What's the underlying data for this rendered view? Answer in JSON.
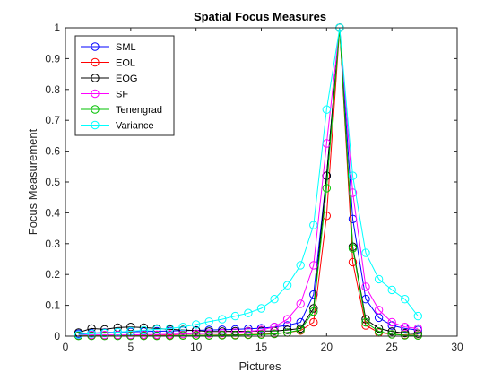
{
  "chart_data": {
    "type": "line",
    "title": "Spatial Focus Measures",
    "xlabel": "Pictures",
    "ylabel": "Focus Measurement",
    "xlim": [
      0,
      30
    ],
    "ylim": [
      0,
      1
    ],
    "xticks": [
      0,
      5,
      10,
      15,
      20,
      25,
      30
    ],
    "yticks": [
      0,
      0.1,
      0.2,
      0.3,
      0.4,
      0.5,
      0.6,
      0.7,
      0.8,
      0.9,
      1
    ],
    "xtick_labels": [
      "0",
      "5",
      "10",
      "15",
      "20",
      "25",
      "30"
    ],
    "ytick_labels": [
      "0",
      "0.1",
      "0.2",
      "0.3",
      "0.4",
      "0.5",
      "0.6",
      "0.7",
      "0.8",
      "0.9",
      "1"
    ],
    "grid": false,
    "legend_position": "top-left",
    "marker": "circle",
    "x": [
      1,
      2,
      3,
      4,
      5,
      6,
      7,
      8,
      9,
      10,
      11,
      12,
      13,
      14,
      15,
      16,
      17,
      18,
      19,
      20,
      21,
      22,
      23,
      24,
      25,
      26,
      27
    ],
    "series": [
      {
        "name": "SML",
        "color": "#0000ff",
        "values": [
          0.008,
          0.01,
          0.012,
          0.013,
          0.014,
          0.015,
          0.016,
          0.017,
          0.018,
          0.019,
          0.02,
          0.021,
          0.022,
          0.024,
          0.026,
          0.03,
          0.035,
          0.045,
          0.135,
          0.52,
          1.0,
          0.38,
          0.12,
          0.06,
          0.035,
          0.025,
          0.02
        ]
      },
      {
        "name": "EOL",
        "color": "#ff0000",
        "values": [
          0.002,
          0.002,
          0.002,
          0.002,
          0.002,
          0.002,
          0.002,
          0.003,
          0.003,
          0.003,
          0.003,
          0.004,
          0.004,
          0.005,
          0.006,
          0.008,
          0.012,
          0.018,
          0.045,
          0.39,
          1.0,
          0.24,
          0.035,
          0.012,
          0.006,
          0.004,
          0.003
        ]
      },
      {
        "name": "EOG",
        "color": "#000000",
        "values": [
          0.012,
          0.025,
          0.022,
          0.028,
          0.03,
          0.028,
          0.025,
          0.022,
          0.02,
          0.018,
          0.015,
          0.015,
          0.016,
          0.016,
          0.017,
          0.017,
          0.02,
          0.025,
          0.09,
          0.52,
          1.0,
          0.29,
          0.055,
          0.025,
          0.015,
          0.01,
          0.008
        ]
      },
      {
        "name": "SF",
        "color": "#ff00ff",
        "values": [
          0.004,
          0.004,
          0.004,
          0.004,
          0.004,
          0.005,
          0.005,
          0.006,
          0.007,
          0.008,
          0.009,
          0.01,
          0.012,
          0.015,
          0.02,
          0.03,
          0.055,
          0.105,
          0.23,
          0.625,
          1.0,
          0.465,
          0.16,
          0.085,
          0.045,
          0.03,
          0.025
        ]
      },
      {
        "name": "Tenengrad",
        "color": "#00c000",
        "values": [
          0.001,
          0.001,
          0.001,
          0.001,
          0.001,
          0.001,
          0.001,
          0.001,
          0.002,
          0.002,
          0.002,
          0.003,
          0.003,
          0.004,
          0.005,
          0.007,
          0.012,
          0.02,
          0.08,
          0.48,
          1.0,
          0.285,
          0.045,
          0.015,
          0.006,
          0.003,
          0.002
        ]
      },
      {
        "name": "Variance",
        "color": "#00ffff",
        "values": [
          0.005,
          0.008,
          0.01,
          0.013,
          0.016,
          0.019,
          0.022,
          0.025,
          0.03,
          0.038,
          0.047,
          0.055,
          0.065,
          0.075,
          0.09,
          0.12,
          0.165,
          0.23,
          0.36,
          0.735,
          1.0,
          0.52,
          0.27,
          0.185,
          0.15,
          0.12,
          0.065
        ]
      }
    ]
  }
}
